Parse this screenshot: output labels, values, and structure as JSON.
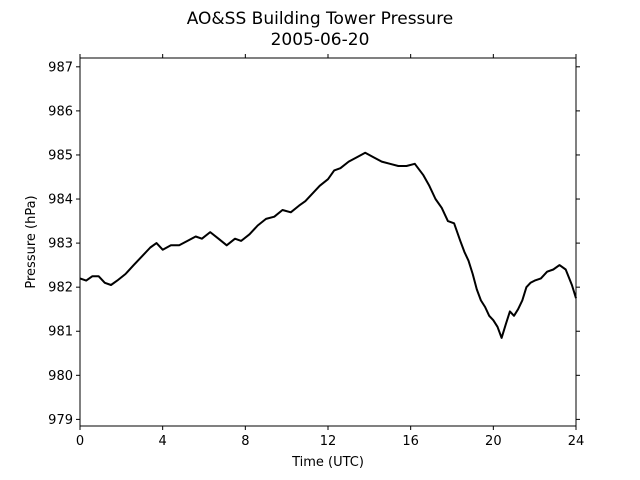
{
  "chart_data": {
    "type": "line",
    "title": "AO&SS Building Tower Pressure",
    "subtitle": "2005-06-20",
    "xlabel": "Time (UTC)",
    "ylabel": "Pressure (hPa)",
    "xlim": [
      0,
      24
    ],
    "ylim": [
      978.85,
      987.2
    ],
    "xticks": [
      0,
      4,
      8,
      12,
      16,
      20,
      24
    ],
    "yticks": [
      979,
      980,
      981,
      982,
      983,
      984,
      985,
      986,
      987
    ],
    "grid": false,
    "series": [
      {
        "color": "#000000",
        "x": [
          0,
          0.3,
          0.6,
          0.9,
          1.2,
          1.5,
          1.8,
          2.2,
          2.6,
          3.0,
          3.4,
          3.7,
          4.0,
          4.4,
          4.8,
          5.2,
          5.6,
          5.9,
          6.3,
          6.7,
          7.1,
          7.5,
          7.8,
          8.2,
          8.6,
          9.0,
          9.4,
          9.8,
          10.2,
          10.6,
          10.9,
          11.2,
          11.6,
          12.0,
          12.3,
          12.6,
          13.0,
          13.4,
          13.8,
          14.2,
          14.6,
          15.0,
          15.4,
          15.8,
          16.2,
          16.6,
          16.9,
          17.2,
          17.5,
          17.8,
          18.1,
          18.4,
          18.6,
          18.8,
          19.0,
          19.2,
          19.4,
          19.6,
          19.8,
          20.0,
          20.2,
          20.4,
          20.6,
          20.8,
          21.0,
          21.2,
          21.4,
          21.6,
          21.8,
          22.0,
          22.3,
          22.6,
          22.9,
          23.2,
          23.5,
          23.8,
          24.0
        ],
        "y": [
          982.2,
          982.15,
          982.25,
          982.25,
          982.1,
          982.05,
          982.15,
          982.3,
          982.5,
          982.7,
          982.9,
          983.0,
          982.85,
          982.95,
          982.95,
          983.05,
          983.15,
          983.1,
          983.25,
          983.1,
          982.95,
          983.1,
          983.05,
          983.2,
          983.4,
          983.55,
          983.6,
          983.75,
          983.7,
          983.85,
          983.95,
          984.1,
          984.3,
          984.45,
          984.65,
          984.7,
          984.85,
          984.95,
          985.05,
          984.95,
          984.85,
          984.8,
          984.75,
          984.75,
          984.8,
          984.55,
          984.3,
          984.0,
          983.8,
          983.5,
          983.45,
          983.05,
          982.8,
          982.6,
          982.3,
          981.95,
          981.7,
          981.55,
          981.35,
          981.25,
          981.1,
          980.85,
          981.15,
          981.45,
          981.35,
          981.5,
          981.7,
          982.0,
          982.1,
          982.15,
          982.2,
          982.35,
          982.4,
          982.5,
          982.4,
          982.05,
          981.75
        ]
      }
    ]
  }
}
